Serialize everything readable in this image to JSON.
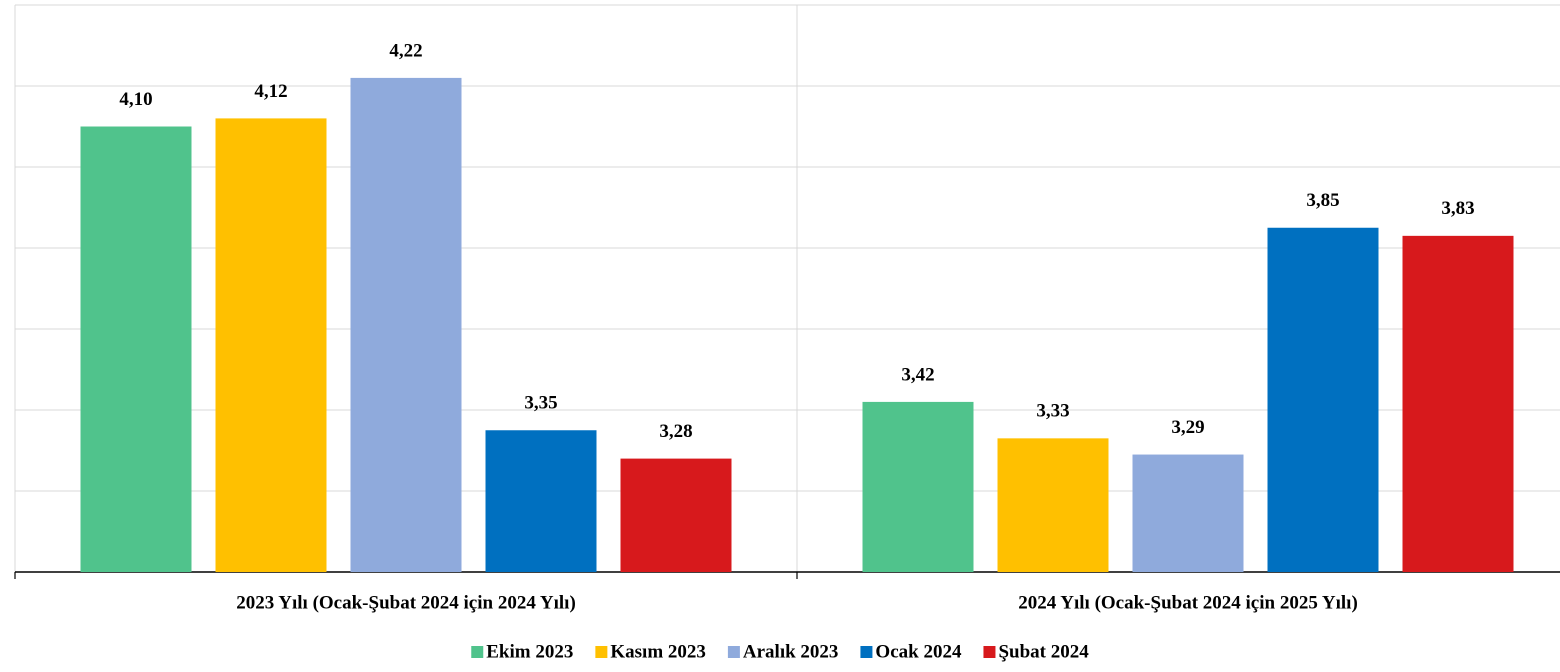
{
  "chart_data": {
    "type": "bar",
    "categories": [
      "2023 Yılı (Ocak-Şubat 2024 için 2024 Yılı)",
      "2024 Yılı (Ocak-Şubat 2024 için 2025 Yılı)"
    ],
    "series": [
      {
        "name": "Ekim 2023",
        "color": "#50c38c",
        "values": [
          4.1,
          3.42
        ],
        "value_labels": [
          "4,10",
          "3,42"
        ]
      },
      {
        "name": "Kasım 2023",
        "color": "#ffc000",
        "values": [
          4.12,
          3.33
        ],
        "value_labels": [
          "4,12",
          "3,33"
        ]
      },
      {
        "name": "Aralık 2023",
        "color": "#8faadc",
        "values": [
          4.22,
          3.29
        ],
        "value_labels": [
          "4,22",
          "3,29"
        ]
      },
      {
        "name": "Ocak 2024",
        "color": "#0070c0",
        "values": [
          3.35,
          3.85
        ],
        "value_labels": [
          "3,35",
          "3,85"
        ]
      },
      {
        "name": "Şubat 2024",
        "color": "#d7191c",
        "values": [
          3.28,
          3.83
        ],
        "value_labels": [
          "3,28",
          "3,83"
        ]
      }
    ],
    "ylim": [
      3.0,
      4.4
    ],
    "yticks": [
      3.2,
      3.4,
      3.6,
      3.8,
      4.0,
      4.2,
      4.4
    ],
    "grid": true,
    "legend": "bottom"
  }
}
